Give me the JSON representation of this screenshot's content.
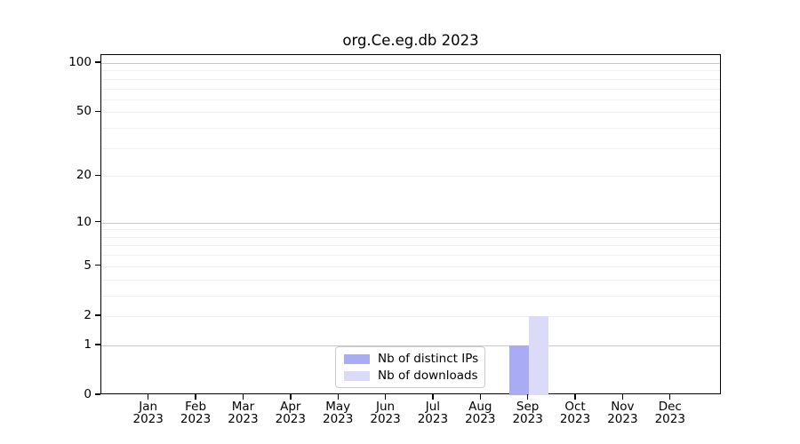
{
  "title": "org.Ce.eg.db 2023",
  "legend": {
    "items": [
      {
        "label": "Nb of distinct IPs",
        "color": "#a9acf5"
      },
      {
        "label": "Nb of downloads",
        "color": "#dbdbf8"
      }
    ]
  },
  "chart_data": {
    "type": "bar",
    "title": "org.Ce.eg.db 2023",
    "xlabel": "",
    "ylabel": "",
    "categories": [
      "Jan 2023",
      "Feb 2023",
      "Mar 2023",
      "Apr 2023",
      "May 2023",
      "Jun 2023",
      "Jul 2023",
      "Aug 2023",
      "Sep 2023",
      "Oct 2023",
      "Nov 2023",
      "Dec 2023"
    ],
    "series": [
      {
        "name": "Nb of distinct IPs",
        "color": "#a9acf5",
        "values": [
          0,
          0,
          0,
          0,
          0,
          0,
          0,
          0,
          1,
          0,
          0,
          0
        ]
      },
      {
        "name": "Nb of downloads",
        "color": "#dbdbf8",
        "values": [
          0,
          0,
          0,
          0,
          0,
          0,
          0,
          0,
          2,
          0,
          0,
          0
        ]
      }
    ],
    "yscale": "log1p",
    "ylim": [
      0,
      112
    ],
    "yticks": [
      100,
      50,
      20,
      10,
      5,
      2,
      1,
      0
    ],
    "major_gridlines": [
      1,
      10,
      100
    ],
    "minor_gridlines": [
      2,
      3,
      4,
      5,
      6,
      7,
      8,
      9,
      20,
      30,
      40,
      50,
      60,
      70,
      80,
      90
    ],
    "grid": "horizontal-only",
    "legend_position": "bottom-center"
  },
  "colors": {
    "background": "#ffffff",
    "axis": "#000000",
    "major_grid": "#c9c9c9",
    "minor_grid": "#efefef",
    "legend_border": "#cccccc"
  }
}
